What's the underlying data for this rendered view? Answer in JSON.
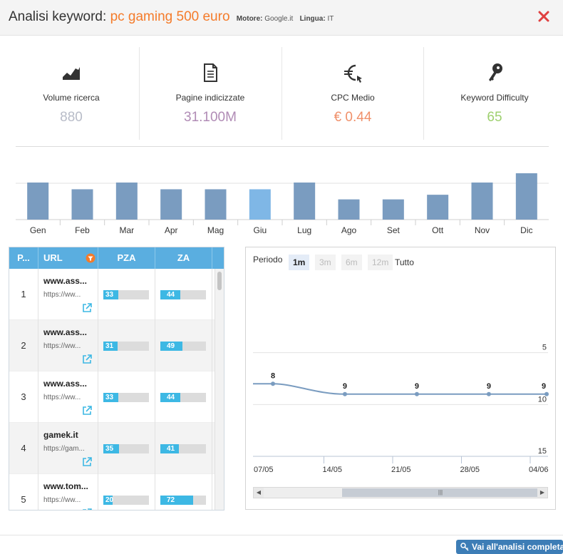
{
  "header": {
    "title_prefix": "Analisi keyword:",
    "keyword": "pc gaming 500 euro",
    "engine_label": "Motore:",
    "engine": "Google.it",
    "language_label": "Lingua:",
    "language": "IT",
    "close_icon": "close-icon",
    "close_color": "#e04040"
  },
  "stats": [
    {
      "icon": "volume-chart-icon",
      "label": "Volume ricerca",
      "value": "880",
      "color": "#b8bcc8"
    },
    {
      "icon": "document-icon",
      "label": "Pagine indicizzate",
      "value": "31.100M",
      "color": "#b08bb5"
    },
    {
      "icon": "euro-cursor-icon",
      "label": "CPC Medio",
      "value": "€ 0.44",
      "color": "#f0906a"
    },
    {
      "icon": "key-icon",
      "label": "Keyword Difficulty",
      "value": "65",
      "color": "#9ed06f"
    }
  ],
  "chart_data": [
    {
      "type": "bar",
      "categories": [
        "Gen",
        "Feb",
        "Mar",
        "Apr",
        "Mag",
        "Giu",
        "Lug",
        "Ago",
        "Set",
        "Ott",
        "Nov",
        "Dic"
      ],
      "values": [
        880,
        720,
        880,
        720,
        720,
        720,
        880,
        480,
        480,
        590,
        880,
        1100
      ],
      "highlight_index": 5,
      "colors": {
        "bar": "#7a9cc0",
        "highlight": "#7fb7e6"
      }
    },
    {
      "type": "line",
      "x": [
        "07/05",
        "14/05",
        "21/05",
        "28/05",
        "04/06"
      ],
      "points": [
        {
          "x": "07/05",
          "y": 8
        },
        {
          "x": "14/05",
          "y": 9
        },
        {
          "x": "21/05",
          "y": 9
        },
        {
          "x": "28/05",
          "y": 9
        },
        {
          "x": "04/06",
          "y": 9
        }
      ],
      "y_ticks": [
        "5",
        "10",
        "15"
      ],
      "ylim": [
        15,
        0
      ],
      "y_reversed": true,
      "colors": {
        "line": "#7a9cc0"
      }
    }
  ],
  "table": {
    "columns": [
      "P...",
      "URL",
      "PZA",
      "ZA"
    ],
    "rows": [
      {
        "pos": "1",
        "domain": "www.ass...",
        "url": "https://ww...",
        "pza": 33,
        "za": 44
      },
      {
        "pos": "2",
        "domain": "www.ass...",
        "url": "https://ww...",
        "pza": 31,
        "za": 49
      },
      {
        "pos": "3",
        "domain": "www.ass...",
        "url": "https://ww...",
        "pza": 33,
        "za": 44
      },
      {
        "pos": "4",
        "domain": "gamek.it",
        "url": "https://gam...",
        "pza": 35,
        "za": 41
      },
      {
        "pos": "5",
        "domain": "www.tom...",
        "url": "https://ww...",
        "pza": 20,
        "za": 72
      }
    ]
  },
  "period": {
    "label": "Periodo",
    "options": [
      "1m",
      "3m",
      "6m",
      "12m",
      "Tutto"
    ],
    "active": "1m"
  },
  "footer": {
    "button_label": "Vai all'analisi completa"
  }
}
